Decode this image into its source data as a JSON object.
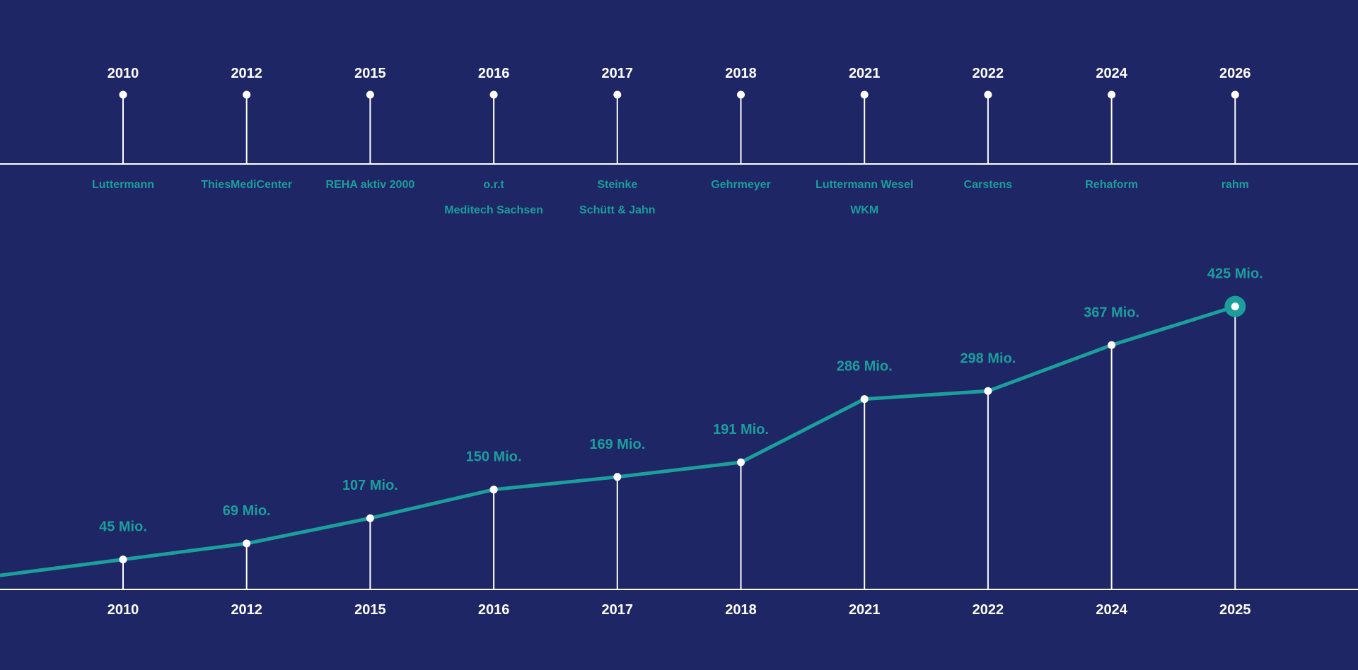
{
  "colors": {
    "background": "#1e2665",
    "accent": "#1c9e9c",
    "line": "#ffffff"
  },
  "timeline": {
    "milestones": [
      {
        "year": "2010",
        "companies": [
          "Luttermann"
        ]
      },
      {
        "year": "2012",
        "companies": [
          "ThiesMediCenter"
        ]
      },
      {
        "year": "2015",
        "companies": [
          "REHA aktiv 2000"
        ]
      },
      {
        "year": "2016",
        "companies": [
          "o.r.t",
          "Meditech Sachsen"
        ]
      },
      {
        "year": "2017",
        "companies": [
          "Steinke",
          "Schütt & Jahn"
        ]
      },
      {
        "year": "2018",
        "companies": [
          "Gehrmeyer"
        ]
      },
      {
        "year": "2021",
        "companies": [
          "Luttermann Wesel",
          "WKM"
        ]
      },
      {
        "year": "2022",
        "companies": [
          "Carstens"
        ]
      },
      {
        "year": "2024",
        "companies": [
          "Rehaform"
        ]
      },
      {
        "year": "2026",
        "companies": [
          "rahm"
        ]
      }
    ]
  },
  "chart_data": {
    "type": "line",
    "categories": [
      "2010",
      "2012",
      "2015",
      "2016",
      "2017",
      "2018",
      "2021",
      "2022",
      "2024",
      "2025"
    ],
    "values": [
      45,
      69,
      107,
      150,
      169,
      191,
      286,
      298,
      367,
      425
    ],
    "data_labels": [
      "45 Mio.",
      "69 Mio.",
      "107 Mio.",
      "150 Mio.",
      "169 Mio.",
      "191 Mio.",
      "286 Mio.",
      "298 Mio.",
      "367 Mio.",
      "425 Mio."
    ],
    "title": "",
    "xlabel": "",
    "ylabel": "",
    "ylim": [
      0,
      450
    ],
    "grid": false,
    "legend": "none"
  }
}
